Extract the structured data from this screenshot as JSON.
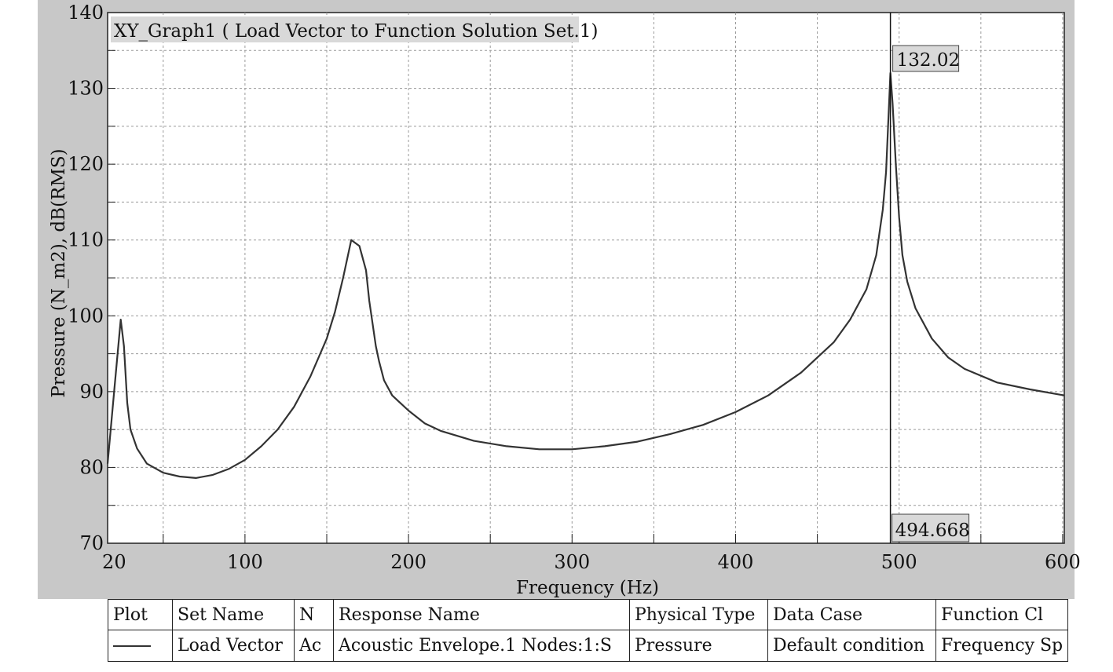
{
  "chart_data": {
    "type": "line",
    "title": "XY_Graph1 ( Load Vector to Function Solution Set.1)",
    "xlabel": "Frequency (Hz)",
    "ylabel": "Pressure (N_m2), dB(RMS)",
    "xlim": [
      16,
      601
    ],
    "ylim": [
      70,
      140
    ],
    "x_ticks": [
      20,
      100,
      200,
      300,
      400,
      500,
      600
    ],
    "y_ticks": [
      70,
      80,
      90,
      100,
      110,
      120,
      130,
      140
    ],
    "grid": true,
    "series": [
      {
        "name": "Load Vector",
        "color": "#333333",
        "x": [
          16,
          20,
          24,
          26,
          28,
          30,
          34,
          40,
          50,
          60,
          70,
          80,
          90,
          100,
          110,
          120,
          130,
          140,
          150,
          155,
          160,
          165,
          170,
          174,
          176,
          178,
          180,
          182,
          185,
          190,
          200,
          210,
          220,
          240,
          260,
          280,
          300,
          320,
          340,
          360,
          380,
          400,
          420,
          440,
          460,
          470,
          480,
          486,
          490,
          492,
          494.668,
          496,
          498,
          500,
          502,
          505,
          510,
          520,
          530,
          540,
          560,
          580,
          601
        ],
        "y": [
          80.5,
          90,
          99.5,
          96,
          88.5,
          85,
          82.5,
          80.5,
          79.3,
          78.8,
          78.6,
          79.0,
          79.8,
          81.0,
          82.8,
          85.0,
          88.0,
          92.0,
          97.0,
          100.5,
          105.0,
          110.0,
          109.2,
          106.0,
          102.0,
          99.0,
          96.0,
          94.0,
          91.5,
          89.5,
          87.5,
          85.8,
          84.8,
          83.5,
          82.8,
          82.4,
          82.4,
          82.8,
          83.4,
          84.4,
          85.6,
          87.3,
          89.5,
          92.5,
          96.5,
          99.5,
          103.5,
          108.0,
          114.0,
          119.0,
          132.02,
          128.0,
          120.0,
          113.0,
          108.0,
          104.5,
          101.0,
          97.0,
          94.5,
          93.0,
          91.2,
          90.3,
          89.5
        ]
      }
    ],
    "markers": {
      "x_value_label": "494.668",
      "y_value_label": "132.02"
    }
  },
  "legend_table": {
    "headers": [
      "Plot",
      "Set Name",
      "N",
      "Response Name",
      "Physical Type",
      "Data Case",
      "Function Cl"
    ],
    "row": {
      "set_name": "Load Vector",
      "n": "Ac",
      "response_name": "Acoustic Envelope.1 Nodes:1:S",
      "physical_type": "Pressure",
      "data_case": "Default condition",
      "function_class": "Frequency Sp"
    }
  }
}
